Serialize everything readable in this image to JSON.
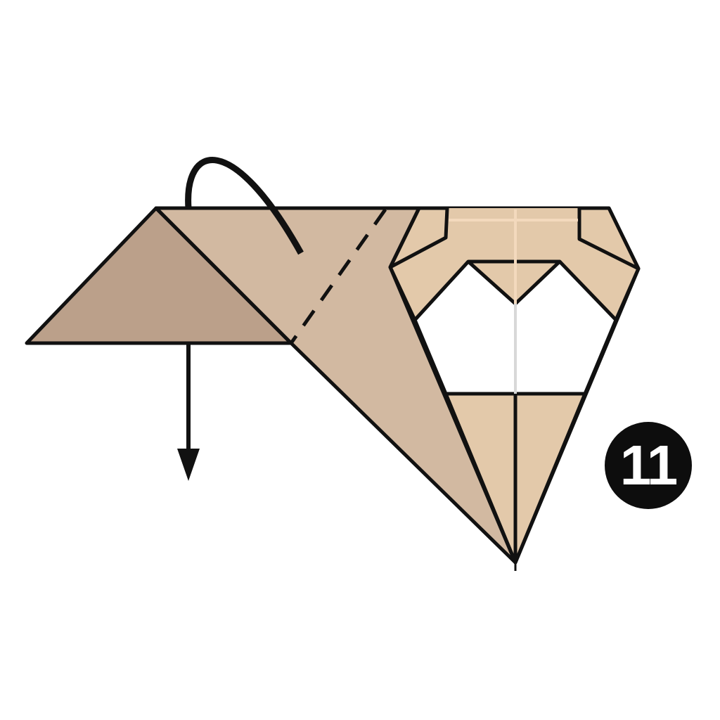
{
  "step": {
    "number": "11",
    "badge_bg": "#0d0d0d",
    "badge_fg": "#ffffff"
  },
  "colors": {
    "outline": "#111111",
    "paper_dark": "#bba08a",
    "paper_mid": "#d2b9a1",
    "paper_light": "#e3c9aa",
    "gap": "#ffffff",
    "center_crease": "#f3d9bd"
  },
  "instruction": {
    "fold_line": "valley-fold-dashed",
    "arrow_curl": "fold-behind-arrow",
    "arrow_down": "pull-down-arrow"
  }
}
